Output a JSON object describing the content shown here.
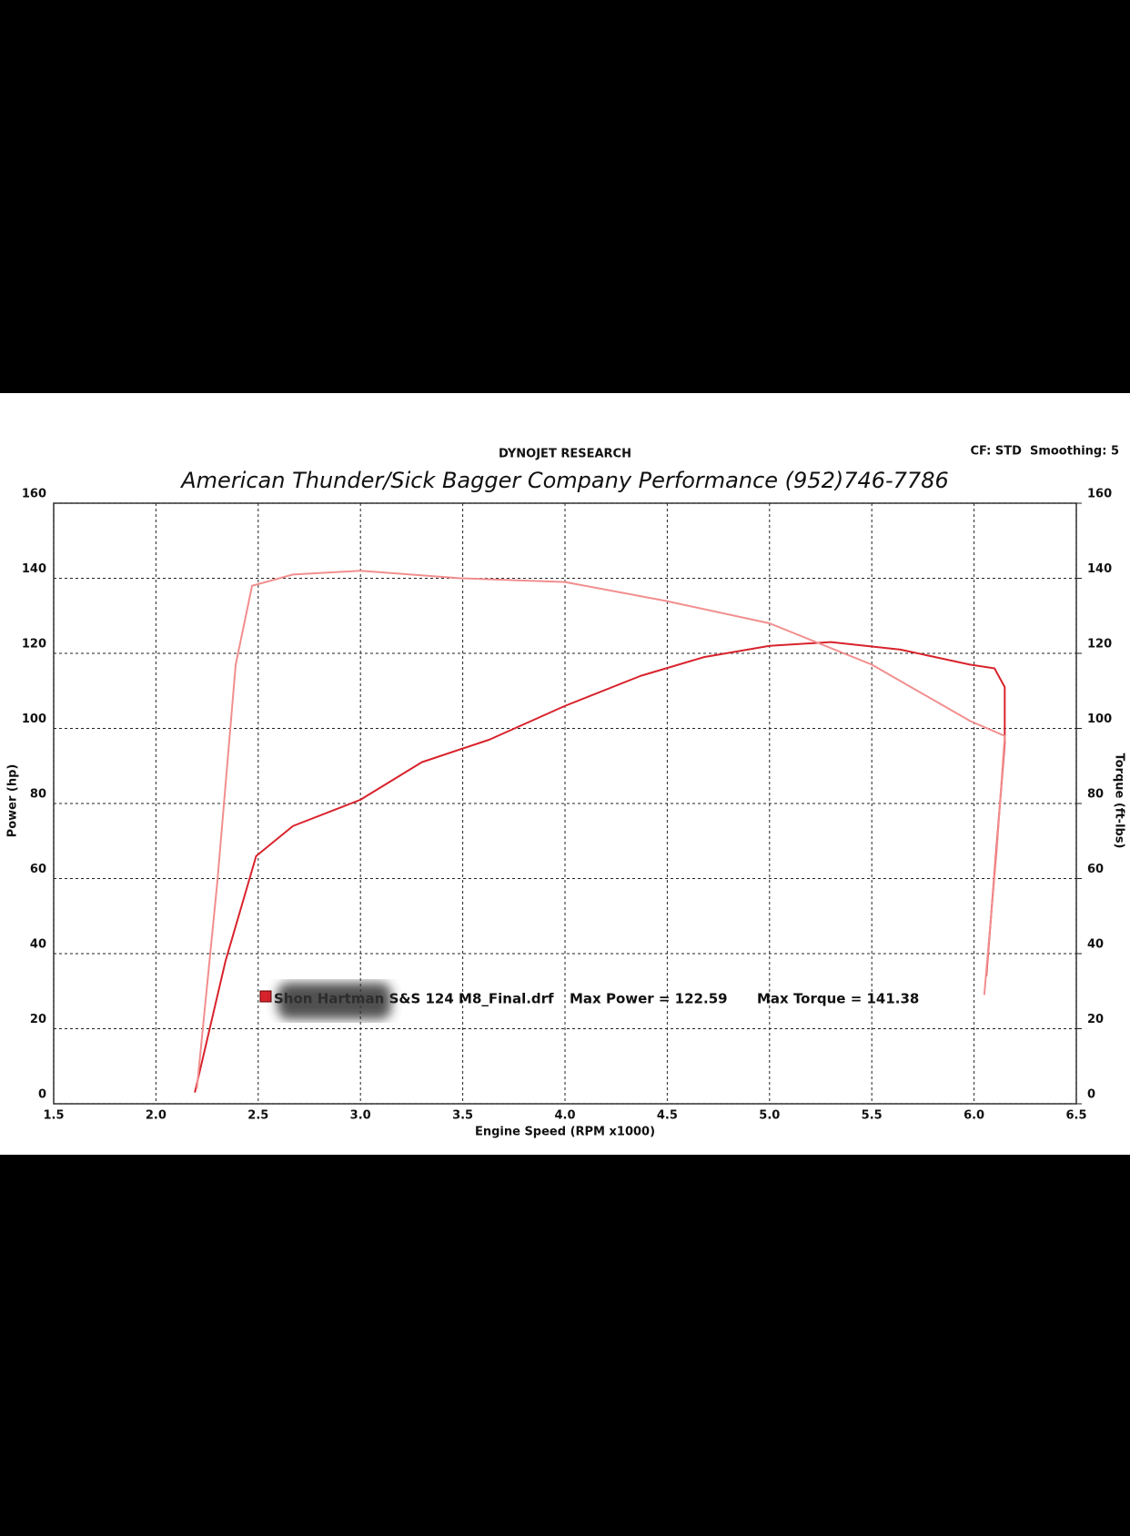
{
  "chart_data": {
    "type": "line",
    "header": "DYNOJET RESEARCH",
    "settings_text": "CF: STD  Smoothing: 5",
    "title": "American Thunder/Sick Bagger Company Performance (952)746-7786",
    "x_label": "Engine Speed (RPM x1000)",
    "y_label": "Power (hp)",
    "y2_label": "Torque (ft-lbs)",
    "xlim": [
      1.5,
      6.5
    ],
    "xticks": [
      {
        "value": 1.5,
        "label": "1.5"
      },
      {
        "value": 2,
        "label": "2.0"
      },
      {
        "value": 2.5,
        "label": "2.5"
      },
      {
        "value": 3,
        "label": "3.0"
      },
      {
        "value": 3.5,
        "label": "3.5"
      },
      {
        "value": 4,
        "label": "4.0"
      },
      {
        "value": 4.5,
        "label": "4.5"
      },
      {
        "value": 5,
        "label": "5.0"
      },
      {
        "value": 5.5,
        "label": "5.5"
      },
      {
        "value": 6,
        "label": "6.0"
      },
      {
        "value": 6.5,
        "label": "6.5"
      }
    ],
    "ylim": [
      0,
      160
    ],
    "yticks": [
      0,
      20,
      40,
      60,
      80,
      100,
      120,
      140,
      160
    ],
    "y2lim": [
      0,
      160
    ],
    "y2ticks": [
      0,
      20,
      40,
      60,
      80,
      100,
      120,
      140,
      160
    ],
    "grid": true,
    "series": [
      {
        "color": "#d8232c",
        "x": [
          2.19,
          2.34,
          2.49,
          2.67,
          3.0,
          3.3,
          3.63,
          4.0,
          4.37,
          4.68,
          5.0,
          5.3,
          5.64,
          5.98,
          6.1,
          6.15,
          6.15,
          6.06
        ],
        "values": [
          3,
          38,
          66,
          74,
          81,
          91,
          97,
          106,
          114,
          119,
          122,
          123,
          121,
          117,
          116,
          111,
          96,
          34
        ]
      },
      {
        "color": "#f28e8e",
        "axis": "y2",
        "x": [
          2.2,
          2.3,
          2.39,
          2.47,
          2.67,
          3.0,
          3.49,
          4.0,
          4.49,
          5.0,
          5.5,
          5.98,
          6.15,
          6.11,
          6.05
        ],
        "values": [
          4,
          59,
          117,
          138,
          141,
          142,
          140,
          139,
          134,
          128,
          117,
          102,
          98,
          67,
          29
        ]
      }
    ],
    "legend": {
      "run": "Shon Hartman S&S 124 M8_Final.drf",
      "max_power": "Max Power = 122.59",
      "max_torque": "Max Torque = 141.38"
    }
  }
}
